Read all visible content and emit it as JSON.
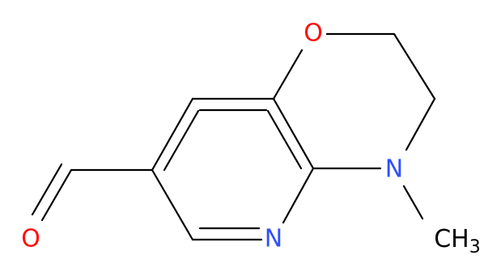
{
  "atoms": [
    {
      "label": "O"
    },
    {
      "label": "N"
    },
    {
      "label": "N"
    },
    {
      "label": "O"
    }
  ],
  "methyl": {
    "label": "CH",
    "subscript": "3"
  }
}
